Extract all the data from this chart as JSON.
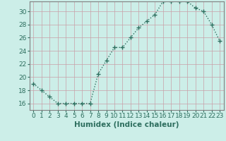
{
  "x": [
    0,
    1,
    2,
    3,
    4,
    5,
    6,
    7,
    8,
    9,
    10,
    11,
    12,
    13,
    14,
    15,
    16,
    17,
    18,
    19,
    20,
    21,
    22,
    23
  ],
  "y": [
    19.0,
    18.0,
    17.0,
    16.0,
    16.0,
    16.0,
    16.0,
    16.0,
    20.5,
    22.5,
    24.5,
    24.5,
    26.0,
    27.5,
    28.5,
    29.5,
    31.5,
    31.5,
    31.5,
    31.5,
    30.5,
    30.0,
    28.0,
    25.5
  ],
  "line_color": "#2d6e5e",
  "marker": "+",
  "marker_size": 4,
  "marker_linewidth": 1.0,
  "bg_color": "#cceee8",
  "grid_color": "#c8a0a8",
  "xlabel": "Humidex (Indice chaleur)",
  "xlim": [
    -0.5,
    23.5
  ],
  "ylim": [
    15.0,
    31.5
  ],
  "yticks": [
    16,
    18,
    20,
    22,
    24,
    26,
    28,
    30
  ],
  "xticks": [
    0,
    1,
    2,
    3,
    4,
    5,
    6,
    7,
    8,
    9,
    10,
    11,
    12,
    13,
    14,
    15,
    16,
    17,
    18,
    19,
    20,
    21,
    22,
    23
  ],
  "xlabel_fontsize": 7.5,
  "tick_fontsize": 6.5,
  "line_width": 1.0,
  "tick_color": "#2d6e5e",
  "spine_color": "#808080"
}
